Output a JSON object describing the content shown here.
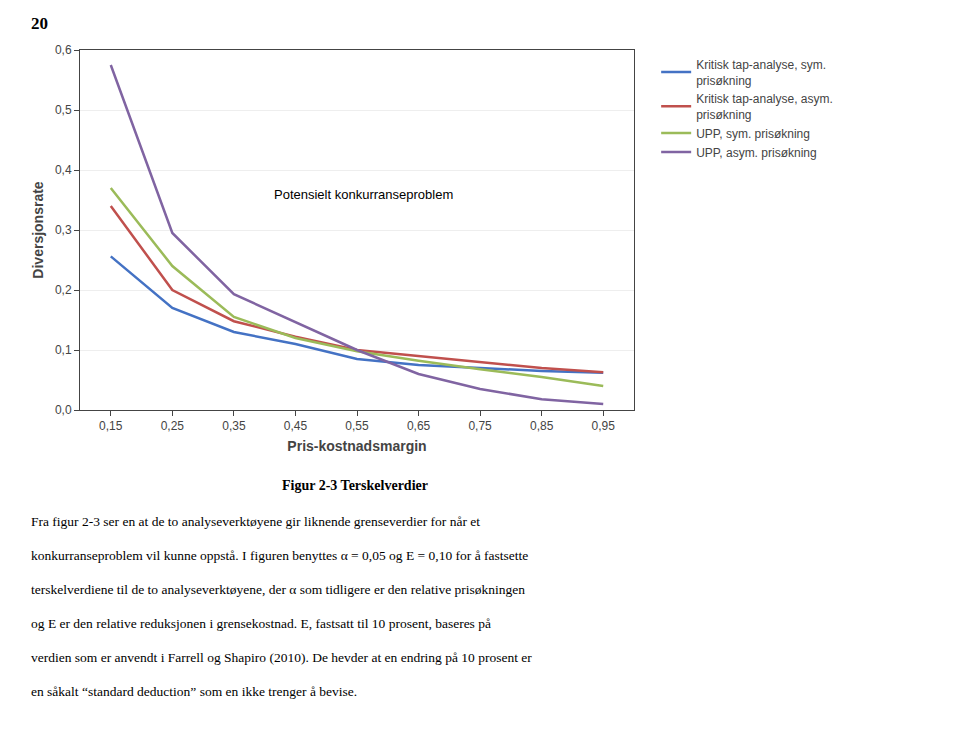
{
  "chart_data": {
    "type": "line",
    "page_number": "20",
    "xlabel": "Pris-kostnadsmargin",
    "ylabel": "Diversjonsrate",
    "annotations": [
      "Potensielt konkurranseproblem"
    ],
    "caption": "Figur 2-3 Terskelverdier",
    "body_text": [
      "Fra figur 2-3 ser en at de to analyseverktøyene gir liknende grenseverdier for når et",
      "konkurranseproblem vil kunne oppstå. I figuren benyttes α = 0,05 og E = 0,10 for å fastsette",
      "terskelverdiene til de to analyseverktøyene, der α som tidligere er den relative prisøkningen",
      "og E er den relative reduksjonen i grensekostnad. E, fastsatt til 10 prosent, baseres på",
      "verdien som er anvendt i Farrell og Shapiro (2010). De hevder at en endring på 10 prosent er",
      "en såkalt “standard deduction” som en ikke trenger å bevise."
    ],
    "x": [
      0.15,
      0.25,
      0.35,
      0.45,
      0.55,
      0.65,
      0.75,
      0.85,
      0.95
    ],
    "series": [
      {
        "name": "Kritisk tap-analyse, sym.\nprisøkning",
        "color": "#4472C4",
        "values": [
          0.256,
          0.17,
          0.13,
          0.11,
          0.085,
          0.075,
          0.07,
          0.065,
          0.062
        ]
      },
      {
        "name": "Kritisk tap-analyse, asym.\nprisøkning",
        "color": "#C0504D",
        "values": [
          0.34,
          0.2,
          0.148,
          0.122,
          0.1,
          0.09,
          0.08,
          0.07,
          0.063
        ]
      },
      {
        "name": "UPP, sym. prisøkning",
        "color": "#9BBB59",
        "values": [
          0.37,
          0.24,
          0.155,
          0.12,
          0.098,
          0.082,
          0.068,
          0.055,
          0.04
        ]
      },
      {
        "name": "UPP, asym. prisøkning",
        "color": "#8064A2",
        "values": [
          0.575,
          0.295,
          0.193,
          0.147,
          0.1,
          0.06,
          0.035,
          0.018,
          0.01
        ]
      }
    ],
    "xlim": [
      0.1,
      1.0
    ],
    "ylim": [
      0.0,
      0.6
    ],
    "xticks": [
      {
        "value": 0.15,
        "label": "0,15"
      },
      {
        "value": 0.25,
        "label": "0,25"
      },
      {
        "value": 0.35,
        "label": "0,35"
      },
      {
        "value": 0.45,
        "label": "0,45"
      },
      {
        "value": 0.55,
        "label": "0,55"
      },
      {
        "value": 0.65,
        "label": "0,65"
      },
      {
        "value": 0.75,
        "label": "0,75"
      },
      {
        "value": 0.85,
        "label": "0,85"
      },
      {
        "value": 0.95,
        "label": "0,95"
      }
    ],
    "yticks": [
      {
        "value": 0.0,
        "label": "0,0"
      },
      {
        "value": 0.1,
        "label": "0,1"
      },
      {
        "value": 0.2,
        "label": "0,2"
      },
      {
        "value": 0.3,
        "label": "0,3"
      },
      {
        "value": 0.4,
        "label": "0,4"
      },
      {
        "value": 0.5,
        "label": "0,5"
      },
      {
        "value": 0.6,
        "label": "0,6"
      }
    ],
    "grid": "y",
    "legend": "right"
  }
}
